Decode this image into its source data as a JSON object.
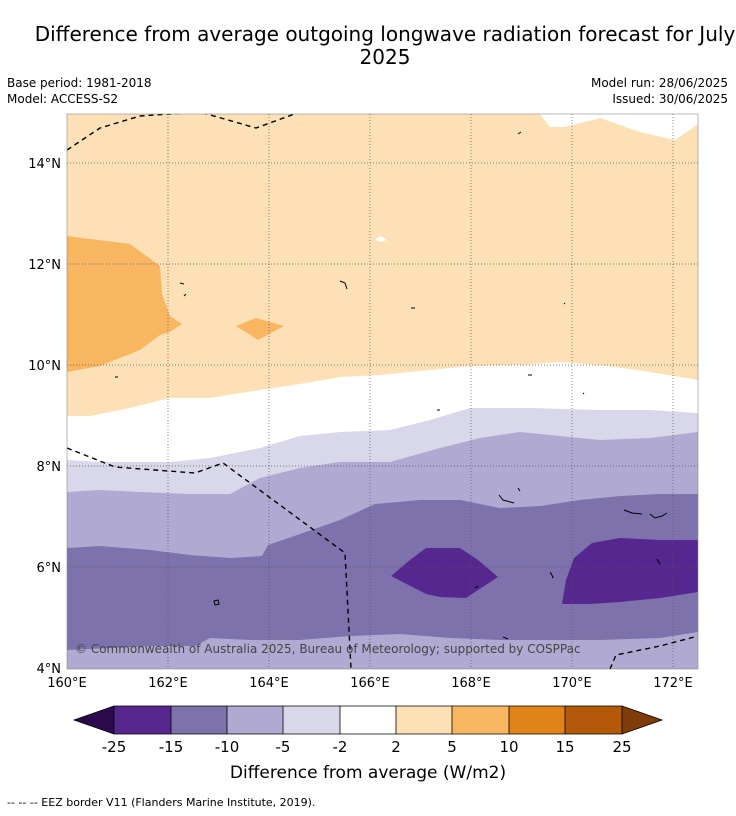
{
  "title": "Difference from average outgoing longwave radiation forecast for July 2025",
  "meta": {
    "base_period": "Base period: 1981-2018",
    "model": "Model: ACCESS-S2",
    "model_run": "Model run: 28/06/2025",
    "issued": "Issued: 30/06/2025"
  },
  "map": {
    "lat_labels": [
      "14°N",
      "12°N",
      "10°N",
      "8°N",
      "6°N",
      "4°N"
    ],
    "lon_labels": [
      "160°E",
      "162°E",
      "164°E",
      "166°E",
      "168°E",
      "170°E",
      "172°E"
    ],
    "copyright": "© Commonwealth of Australia 2025, Bureau of Meteorology; supported by COSPPac",
    "legend_footer": "--  --  -- EEZ border V11 (Flanders Marine Institute, 2019)."
  },
  "colorbar": {
    "label": "Difference from average (W/m2)",
    "ticks": [
      "-25",
      "-15",
      "-10",
      "-5",
      "-2",
      "2",
      "5",
      "10",
      "15",
      "25"
    ],
    "colors": {
      "lt_-25": "#2d0a4e",
      "-25_-15": "#56278f",
      "-15_-10": "#7e72ac",
      "-10_-5": "#b0aad2",
      "-5_-2": "#d8d8ea",
      "-2_2": "#ffffff",
      "2_5": "#fde0b6",
      "5_10": "#f9b660",
      "10_15": "#e08418",
      "15_25": "#b35909",
      "gt_25": "#7f3b08"
    }
  }
}
